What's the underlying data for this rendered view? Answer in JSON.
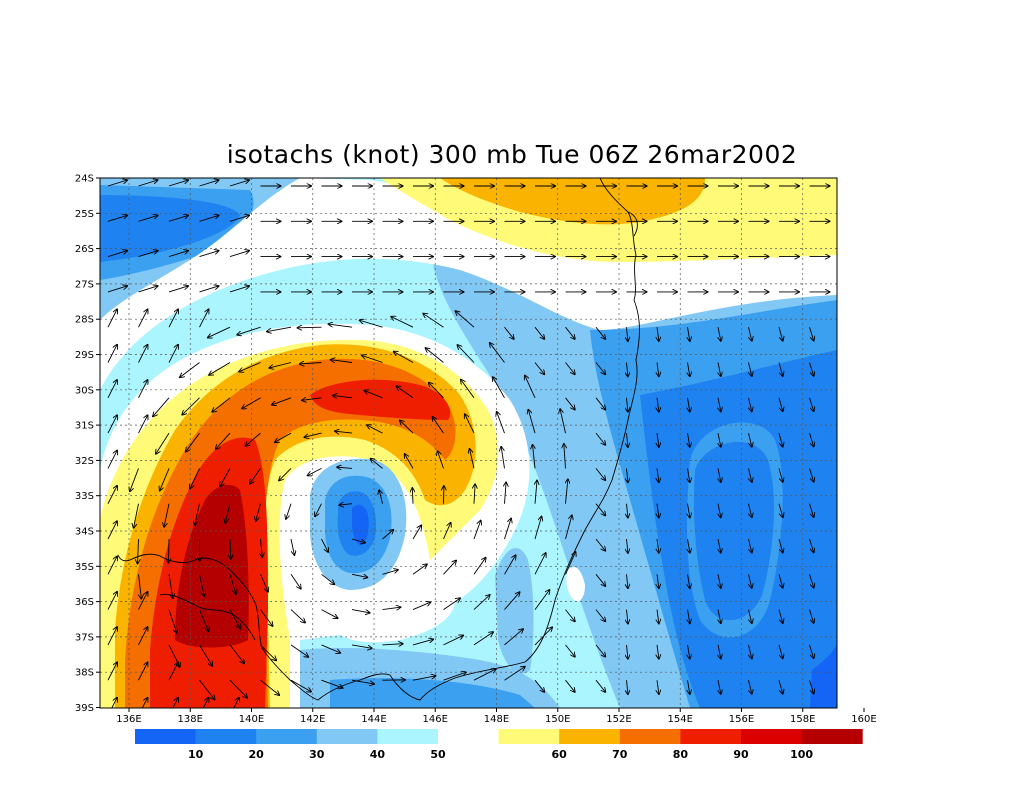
{
  "title": "isotachs (knot) 300 mb Tue 06Z 26mar2002",
  "lat_labels": [
    "24S",
    "25S",
    "26S",
    "27S",
    "28S",
    "29S",
    "30S",
    "31S",
    "32S",
    "33S",
    "34S",
    "35S",
    "36S",
    "37S",
    "38S",
    "39S"
  ],
  "lon_labels": [
    "136E",
    "138E",
    "140E",
    "142E",
    "144E",
    "146E",
    "148E",
    "150E",
    "152E",
    "154E",
    "156E",
    "158E",
    "160E"
  ],
  "colorbar": {
    "boxes": [
      {
        "color": "#1464f5"
      },
      {
        "color": "#1e82f0"
      },
      {
        "color": "#3ca0f0"
      },
      {
        "color": "#82c8f5"
      },
      {
        "color": "#aaf5ff"
      },
      {
        "color": "#ffffff"
      },
      {
        "color": "#fffa78"
      },
      {
        "color": "#fab400"
      },
      {
        "color": "#f56e00"
      },
      {
        "color": "#f01e00"
      },
      {
        "color": "#dc0000"
      },
      {
        "color": "#b40000"
      }
    ],
    "labels": [
      "10",
      "20",
      "30",
      "40",
      "50",
      "60",
      "70",
      "80",
      "90",
      "100"
    ]
  },
  "colors": {
    "c5": "#1464f5",
    "c15": "#1e82f0",
    "c25": "#3ca0f0",
    "c35": "#82c8f5",
    "c45": "#aaf5ff",
    "c55": "#ffffff",
    "c65": "#fffa78",
    "c75": "#fab400",
    "c85": "#f56e00",
    "c95": "#f01e00",
    "c100": "#b40000"
  }
}
